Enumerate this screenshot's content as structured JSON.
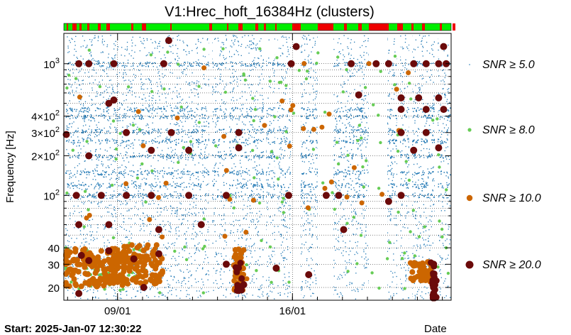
{
  "chart_data": {
    "type": "scatter",
    "title": "V1:Hrec_hoft_16384Hz (clusters)",
    "ylabel": "Frequency [Hz]",
    "xlabel": "Date",
    "start_label": "Start: 2025-Jan-07 12:30:22",
    "y_scale": "log",
    "ylim": [
      16,
      1700
    ],
    "xlim_days": [
      0,
      15.5
    ],
    "y_ticks": [
      {
        "value": 20,
        "label": "20"
      },
      {
        "value": 30,
        "label": "30"
      },
      {
        "value": 40,
        "label": "40"
      },
      {
        "value": 100,
        "label": "10^2"
      },
      {
        "value": 200,
        "label": "2×10^2"
      },
      {
        "value": 300,
        "label": "3×10^2"
      },
      {
        "value": 400,
        "label": "4×10^2"
      },
      {
        "value": 1000,
        "label": "10^3"
      }
    ],
    "x_ticks": [
      {
        "label": "09/01"
      },
      {
        "label": "16/01"
      }
    ],
    "grid": true,
    "legend_placement": "right",
    "series": [
      {
        "name": "SNR ≥ 5.0",
        "color": "#1f77b4"
      },
      {
        "name": "SNR ≥ 8.0",
        "color": "#66cc55"
      },
      {
        "name": "SNR ≥ 10.0",
        "color": "#cc6600"
      },
      {
        "name": "SNR ≥ 20.0",
        "color": "#6b0a0a"
      }
    ],
    "clusters": [
      {
        "series": 3,
        "x": 0.6,
        "y": 1000
      },
      {
        "series": 3,
        "x": 1.0,
        "y": 1000
      },
      {
        "series": 3,
        "x": 2.0,
        "y": 1000
      },
      {
        "series": 3,
        "x": 4.0,
        "y": 1000
      },
      {
        "series": 3,
        "x": 9.1,
        "y": 1000
      },
      {
        "series": 3,
        "x": 11.5,
        "y": 1000
      },
      {
        "series": 3,
        "x": 12.5,
        "y": 1000
      },
      {
        "series": 3,
        "x": 13.0,
        "y": 1000
      },
      {
        "series": 3,
        "x": 14.0,
        "y": 1000
      },
      {
        "series": 3,
        "x": 14.5,
        "y": 1000
      },
      {
        "series": 3,
        "x": 15.0,
        "y": 1000
      },
      {
        "series": 3,
        "x": 15.3,
        "y": 1000
      },
      {
        "series": 3,
        "x": 4.2,
        "y": 1500
      },
      {
        "series": 3,
        "x": 9.3,
        "y": 1350
      },
      {
        "series": 3,
        "x": 15.2,
        "y": 1350
      },
      {
        "series": 3,
        "x": 13.5,
        "y": 550
      },
      {
        "series": 3,
        "x": 14.2,
        "y": 550
      },
      {
        "series": 3,
        "x": 15.0,
        "y": 550
      },
      {
        "series": 3,
        "x": 2.0,
        "y": 530
      },
      {
        "series": 3,
        "x": 11.8,
        "y": 580
      },
      {
        "series": 3,
        "x": 13.5,
        "y": 450
      },
      {
        "series": 3,
        "x": 14.5,
        "y": 450
      },
      {
        "series": 3,
        "x": 15.2,
        "y": 450
      },
      {
        "series": 3,
        "x": 1.8,
        "y": 500
      },
      {
        "series": 3,
        "x": 0.1,
        "y": 290
      },
      {
        "series": 3,
        "x": 2.5,
        "y": 300
      },
      {
        "series": 3,
        "x": 4.3,
        "y": 300
      },
      {
        "series": 3,
        "x": 7.0,
        "y": 300
      },
      {
        "series": 3,
        "x": 13.5,
        "y": 300
      },
      {
        "series": 3,
        "x": 14.5,
        "y": 300
      },
      {
        "series": 3,
        "x": 1.0,
        "y": 200
      },
      {
        "series": 3,
        "x": 3.5,
        "y": 220
      },
      {
        "series": 3,
        "x": 5.0,
        "y": 220
      },
      {
        "series": 3,
        "x": 7.0,
        "y": 230
      },
      {
        "series": 3,
        "x": 14.0,
        "y": 220
      },
      {
        "series": 3,
        "x": 15.0,
        "y": 230
      },
      {
        "series": 3,
        "x": 0.5,
        "y": 100
      },
      {
        "series": 3,
        "x": 1.5,
        "y": 100
      },
      {
        "series": 3,
        "x": 2.5,
        "y": 100
      },
      {
        "series": 3,
        "x": 3.5,
        "y": 100
      },
      {
        "series": 3,
        "x": 5.0,
        "y": 100
      },
      {
        "series": 3,
        "x": 6.5,
        "y": 100
      },
      {
        "series": 3,
        "x": 9.0,
        "y": 100
      },
      {
        "series": 3,
        "x": 10.5,
        "y": 100
      },
      {
        "series": 3,
        "x": 11.0,
        "y": 100
      },
      {
        "series": 3,
        "x": 13.5,
        "y": 100
      },
      {
        "series": 3,
        "x": 13.0,
        "y": 90
      },
      {
        "series": 3,
        "x": 0.6,
        "y": 60
      },
      {
        "series": 3,
        "x": 1.8,
        "y": 60
      },
      {
        "series": 3,
        "x": 3.8,
        "y": 55
      },
      {
        "series": 3,
        "x": 5.5,
        "y": 60
      },
      {
        "series": 3,
        "x": 11.2,
        "y": 55
      },
      {
        "series": 3,
        "x": 0.7,
        "y": 35
      },
      {
        "series": 3,
        "x": 1.0,
        "y": 32
      },
      {
        "series": 3,
        "x": 1.8,
        "y": 38
      },
      {
        "series": 3,
        "x": 2.8,
        "y": 33
      },
      {
        "series": 3,
        "x": 3.8,
        "y": 36
      },
      {
        "series": 3,
        "x": 6.5,
        "y": 30
      },
      {
        "series": 3,
        "x": 8.5,
        "y": 28
      },
      {
        "series": 3,
        "x": 9.8,
        "y": 25
      },
      {
        "series": 3,
        "x": 14.8,
        "y": 30
      },
      {
        "series": 3,
        "x": 14.8,
        "y": 25
      },
      {
        "series": 3,
        "x": 14.8,
        "y": 20
      },
      {
        "series": 3,
        "x": 14.8,
        "y": 18
      },
      {
        "series": 3,
        "x": 0.6,
        "y": 18
      },
      {
        "series": 3,
        "x": 3.2,
        "y": 20
      },
      {
        "series": 3,
        "x": 7.0,
        "y": 19
      },
      {
        "series": 3,
        "x": 7.2,
        "y": 21
      }
    ]
  }
}
